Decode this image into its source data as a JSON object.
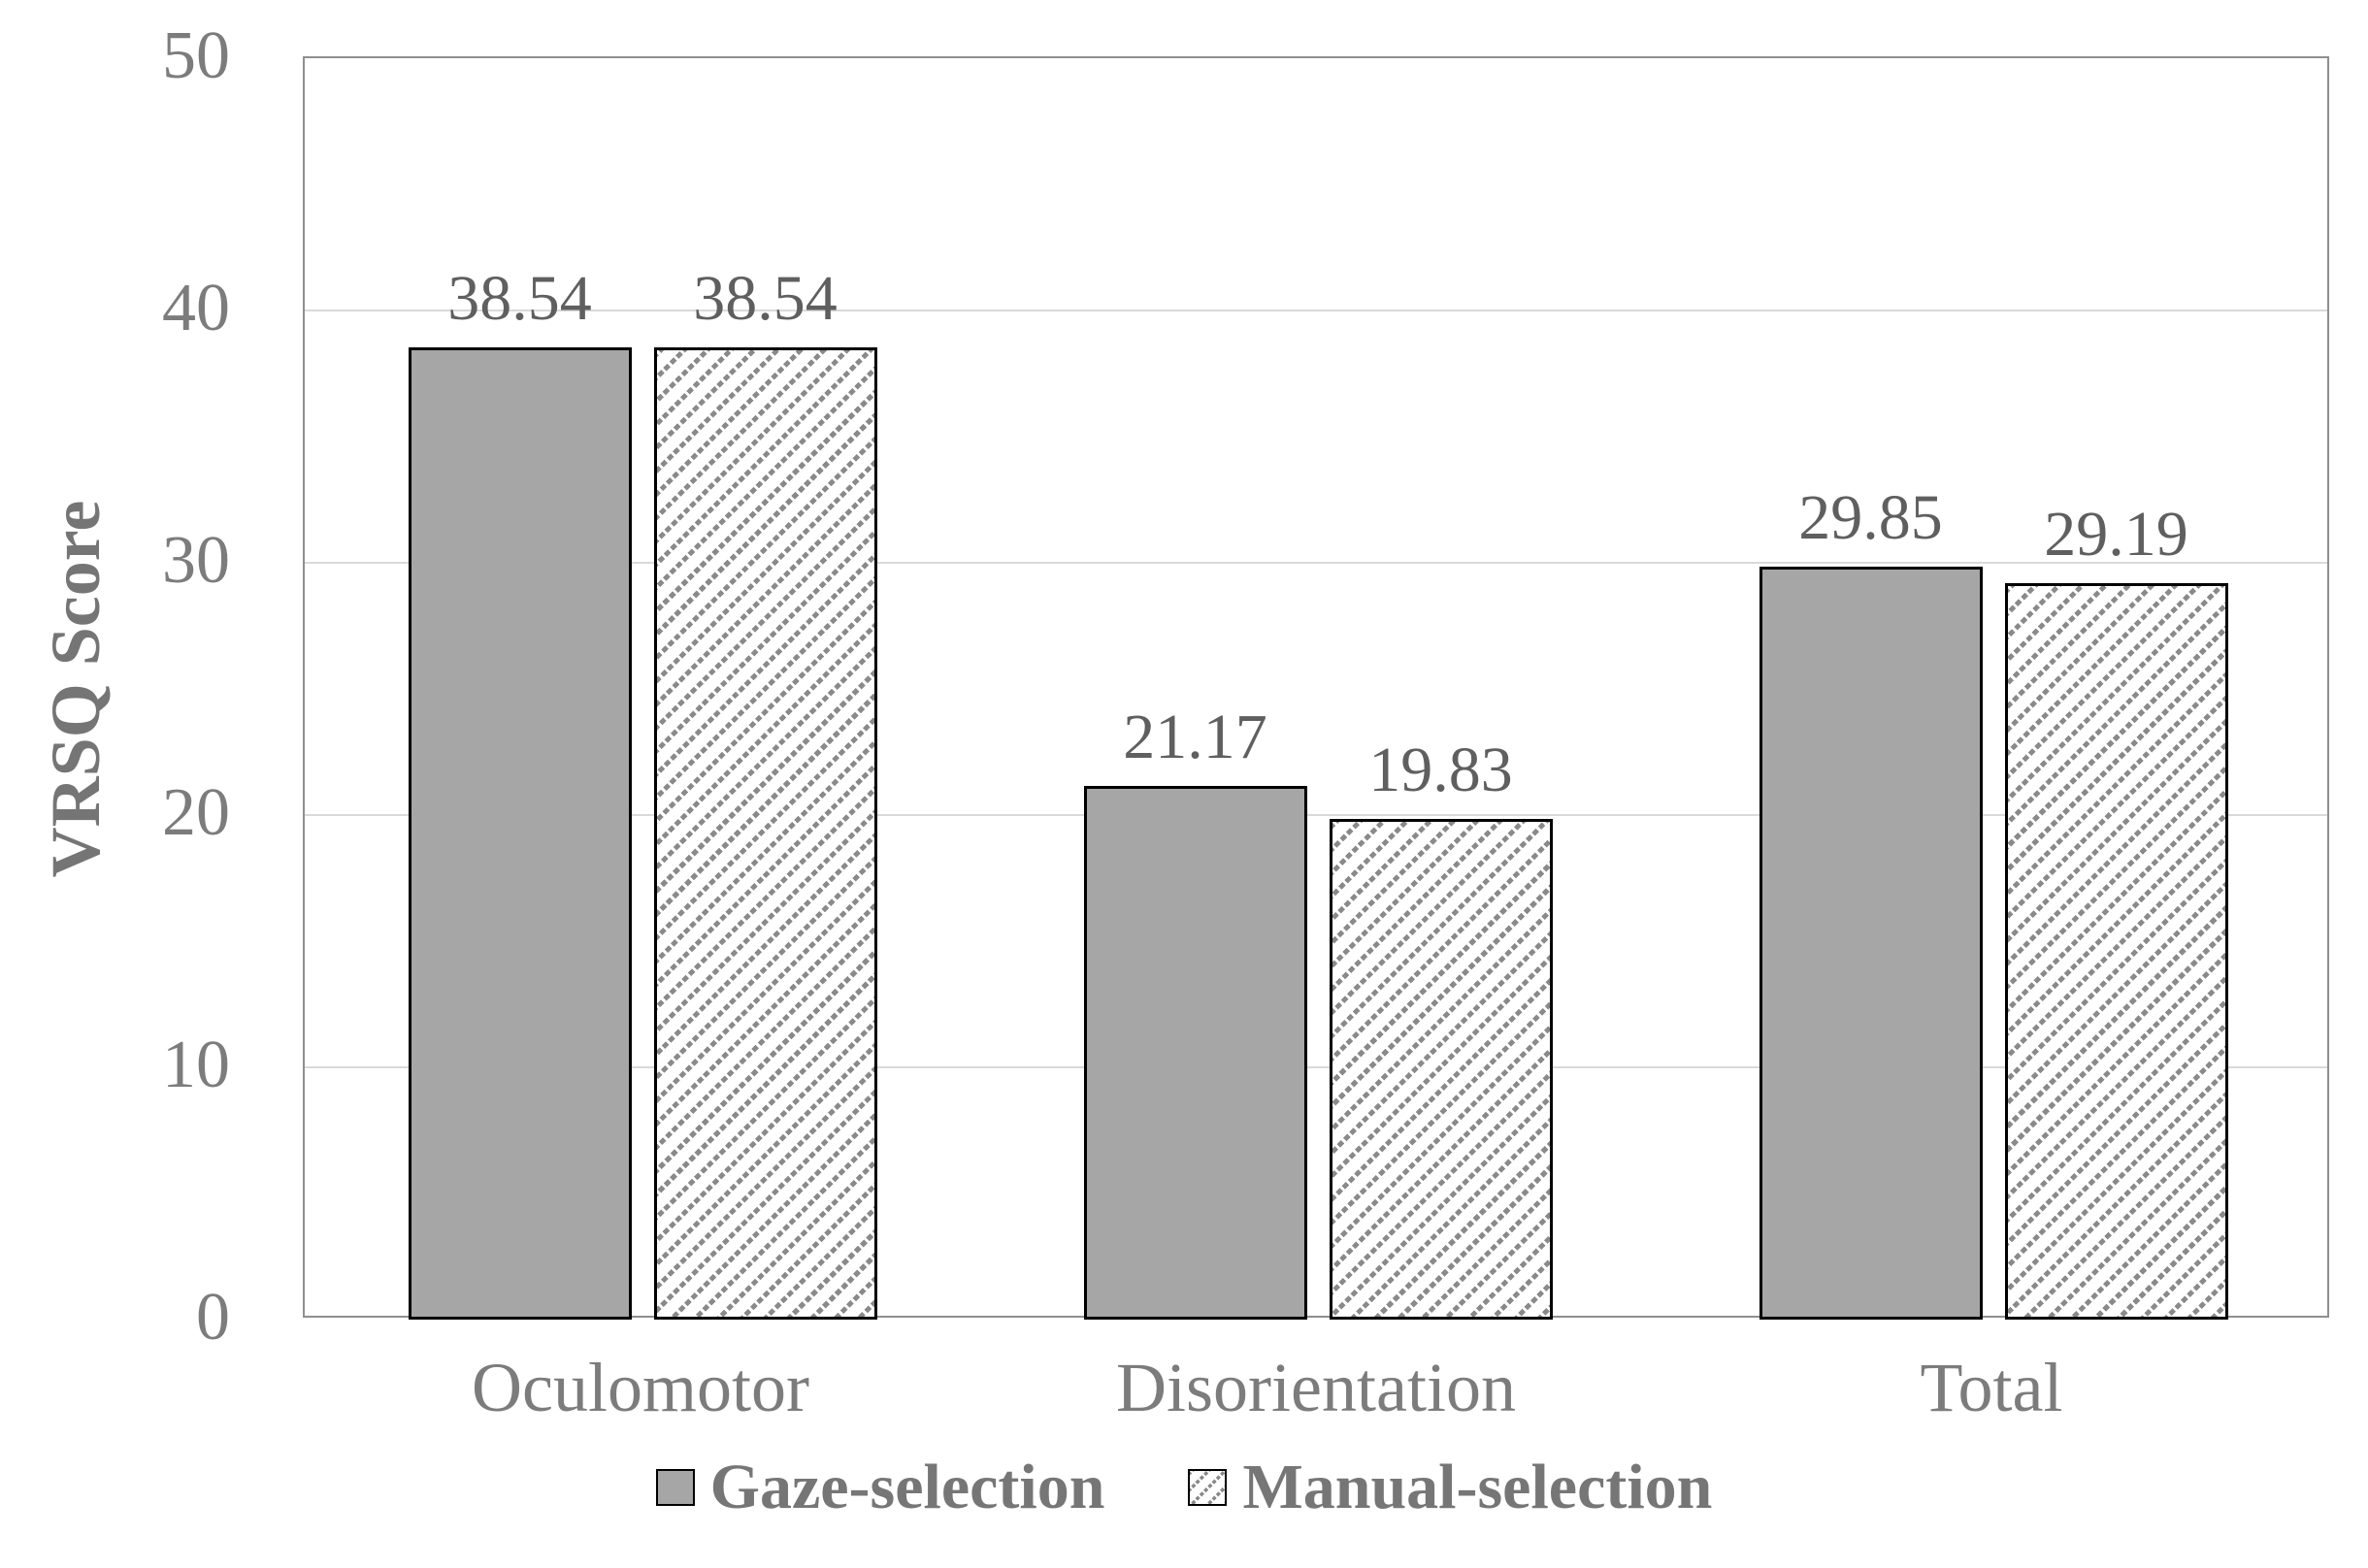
{
  "chart_data": {
    "type": "bar",
    "title": "",
    "xlabel": "",
    "ylabel": "VRSQ Score",
    "categories": [
      "Oculomotor",
      "Disorientation",
      "Total"
    ],
    "series": [
      {
        "name": "Gaze-selection",
        "pattern": "solid",
        "values": [
          38.54,
          21.17,
          29.85
        ],
        "labels": [
          "38.54",
          "21.17",
          "29.85"
        ]
      },
      {
        "name": "Manual-selection",
        "pattern": "hatch",
        "values": [
          38.54,
          19.83,
          29.19
        ],
        "labels": [
          "38.54",
          "19.83",
          "29.19"
        ]
      }
    ],
    "ylim": [
      0,
      50
    ],
    "yticks": [
      0,
      10,
      20,
      30,
      40,
      50
    ],
    "ytick_labels": [
      "0",
      "10",
      "20",
      "30",
      "40",
      "50"
    ],
    "grid": true,
    "legend_position": "bottom",
    "colors": {
      "background": "#ffffff",
      "solid_fill": "#a6a6a6",
      "hatch_foreground": "#8a8a8a",
      "bar_border": "#000000",
      "grid_line": "#d9d9d9",
      "plot_border": "#8f8f8f",
      "axis_text": "#7c7c7c",
      "data_label_text": "#5f5f5f",
      "legend_text": "#767676"
    }
  }
}
